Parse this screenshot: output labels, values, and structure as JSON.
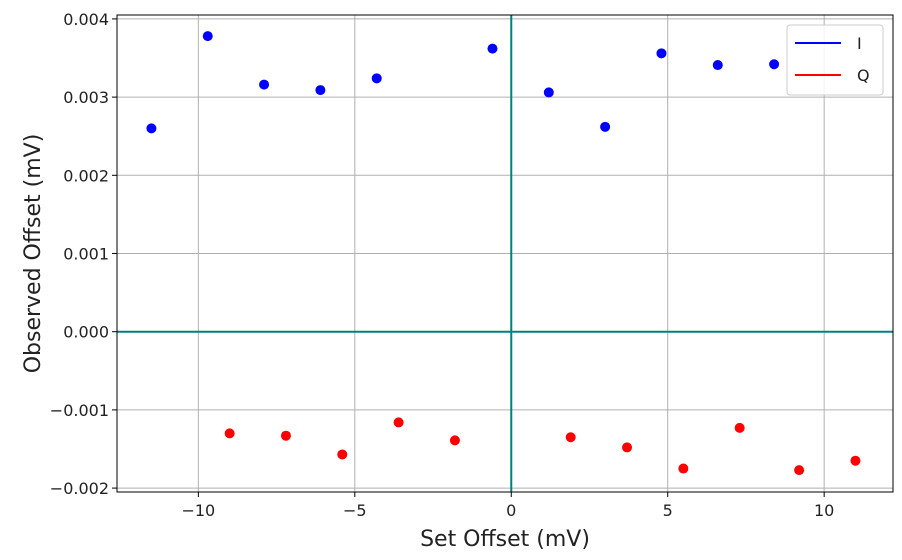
{
  "chart_data": {
    "type": "scatter",
    "xlabel": "Set Offset (mV)",
    "ylabel": "Observed Offset (mV)",
    "xlim": [
      -12.6,
      12.2
    ],
    "ylim": [
      -0.00205,
      0.00405
    ],
    "xticks": [
      -10,
      -5,
      0,
      5,
      10
    ],
    "xtick_labels": [
      "−10",
      "−5",
      "0",
      "5",
      "10"
    ],
    "yticks": [
      0.004,
      0.003,
      0.002,
      0.001,
      0.0,
      -0.001,
      -0.002
    ],
    "ytick_labels": [
      "0.004",
      "0.003",
      "0.002",
      "0.001",
      "0.000",
      "−0.001",
      "−0.002"
    ],
    "grid": true,
    "legend_placement": "top-right",
    "reference_lines": {
      "x": 0,
      "y": 0,
      "color": "#008080"
    },
    "series": [
      {
        "name": "I",
        "color": "#0000ff",
        "x": [
          -11.5,
          -9.7,
          -7.9,
          -6.1,
          -4.3,
          -0.6,
          1.2,
          3.0,
          4.8,
          6.6,
          8.4
        ],
        "y": [
          0.0026,
          0.00378,
          0.00316,
          0.00309,
          0.00324,
          0.00362,
          0.00306,
          0.00262,
          0.00356,
          0.00341,
          0.00342
        ]
      },
      {
        "name": "Q",
        "color": "#ff0000",
        "x": [
          -9.0,
          -7.2,
          -5.4,
          -3.6,
          -1.8,
          1.9,
          3.7,
          5.5,
          7.3,
          9.2,
          11.0
        ],
        "y": [
          -0.0013,
          -0.00133,
          -0.00157,
          -0.00116,
          -0.00139,
          -0.00135,
          -0.00148,
          -0.00175,
          -0.00123,
          -0.00177,
          -0.00165
        ]
      }
    ]
  }
}
